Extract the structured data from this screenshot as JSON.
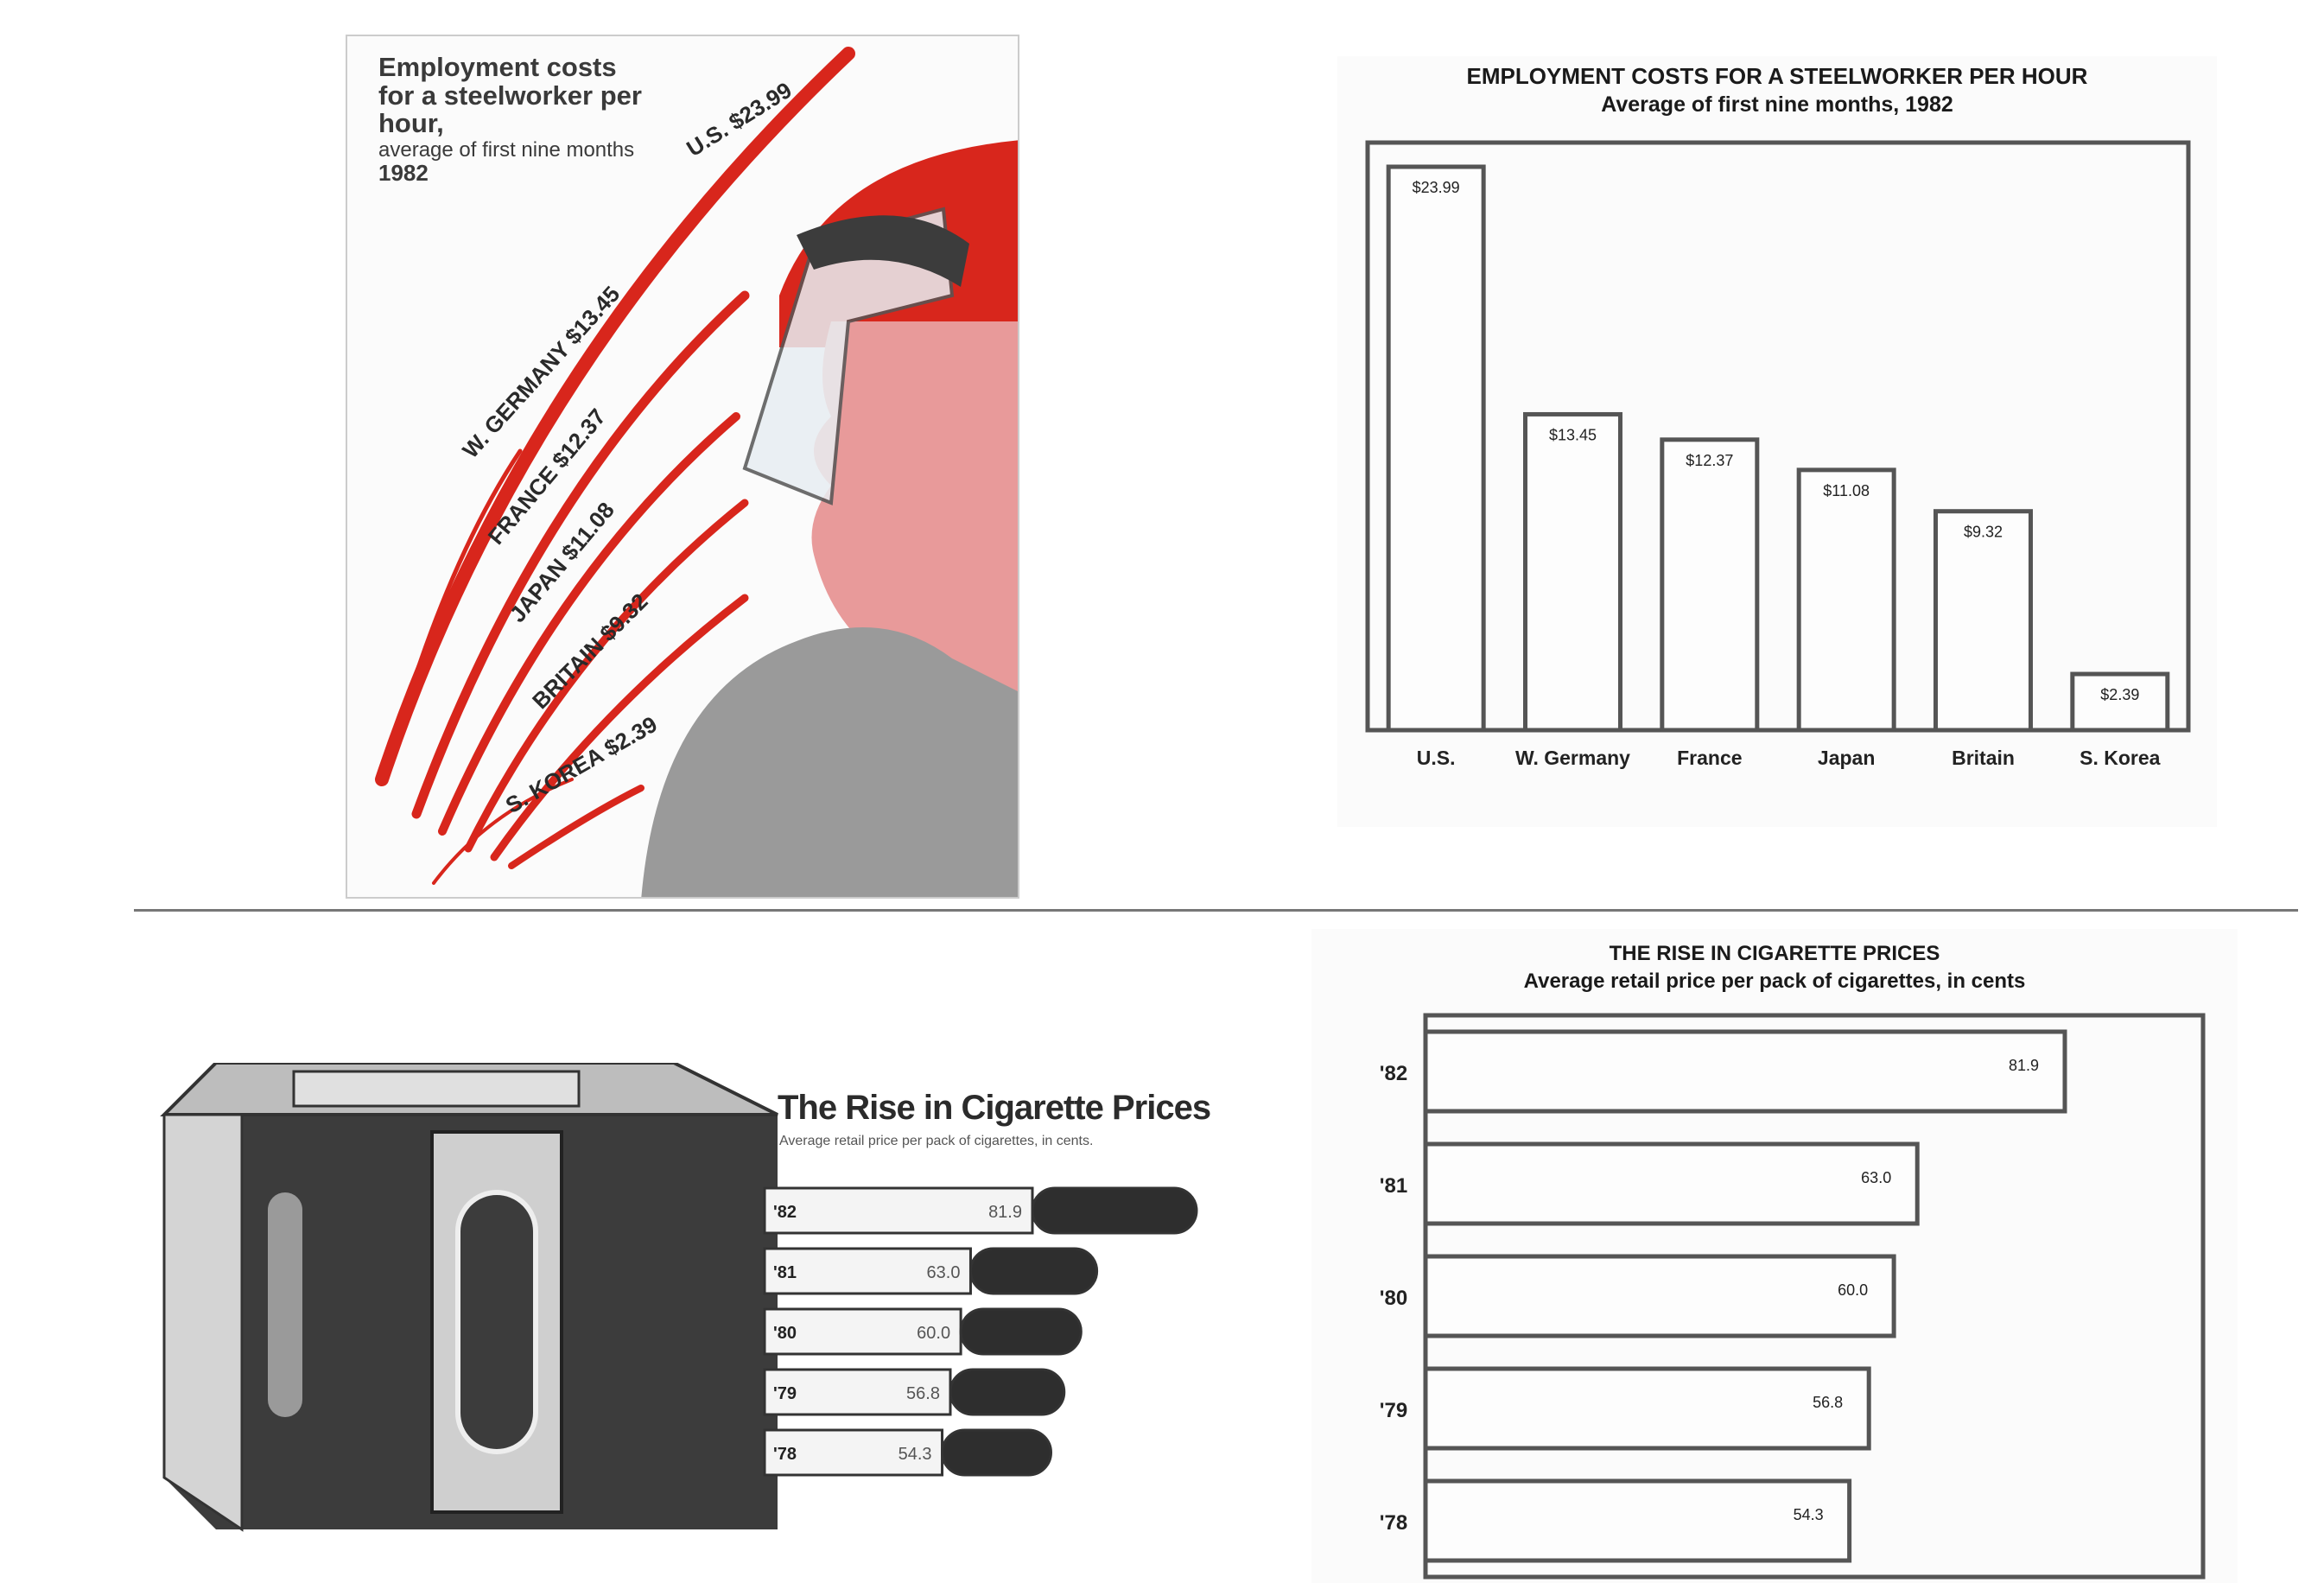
{
  "illustration_steel": {
    "caption_main": "Employment costs for a steelworker per hour,",
    "caption_sub": "average of first nine months",
    "caption_year": "1982",
    "labels": [
      "U.S. $23.99",
      "W. GERMANY $13.45",
      "FRANCE $12.37",
      "JAPAN $11.08",
      "BRITAIN $9.32",
      "S. KOREA $2.39"
    ]
  },
  "illustration_cig": {
    "title": "The Rise in Cigarette Prices",
    "subtitle": "Average retail price per pack of cigarettes, in cents.",
    "rows": [
      {
        "year": "'82",
        "value": "81.9"
      },
      {
        "year": "'81",
        "value": "63.0"
      },
      {
        "year": "'80",
        "value": "60.0"
      },
      {
        "year": "'79",
        "value": "56.8"
      },
      {
        "year": "'78",
        "value": "54.3"
      }
    ]
  },
  "colors": {
    "red": "#d8261c",
    "skin": "#e89a9a",
    "gray": "#9a9a9a",
    "dark": "#3c3c3c",
    "frame": "#555555"
  },
  "chart_data": [
    {
      "type": "bar",
      "title": "EMPLOYMENT COSTS FOR A STEELWORKER PER HOUR",
      "subtitle": "Average of first nine months, 1982",
      "categories": [
        "U.S.",
        "W. Germany",
        "France",
        "Japan",
        "Britain",
        "S. Korea"
      ],
      "values": [
        23.99,
        13.45,
        12.37,
        11.08,
        9.32,
        2.39
      ],
      "value_labels": [
        "$23.99",
        "$13.45",
        "$12.37",
        "$11.08",
        "$9.32",
        "$2.39"
      ],
      "ylim": [
        0,
        25
      ],
      "grid": false
    },
    {
      "type": "bar",
      "orientation": "horizontal",
      "title": "THE RISE IN CIGARETTE PRICES",
      "subtitle": "Average retail price per pack of cigarettes, in cents",
      "categories": [
        "'82",
        "'81",
        "'80",
        "'79",
        "'78"
      ],
      "values": [
        81.9,
        63.0,
        60.0,
        56.8,
        54.3
      ],
      "value_labels": [
        "81.9",
        "63.0",
        "60.0",
        "56.8",
        "54.3"
      ],
      "xlim": [
        0,
        100
      ],
      "grid": false
    }
  ]
}
